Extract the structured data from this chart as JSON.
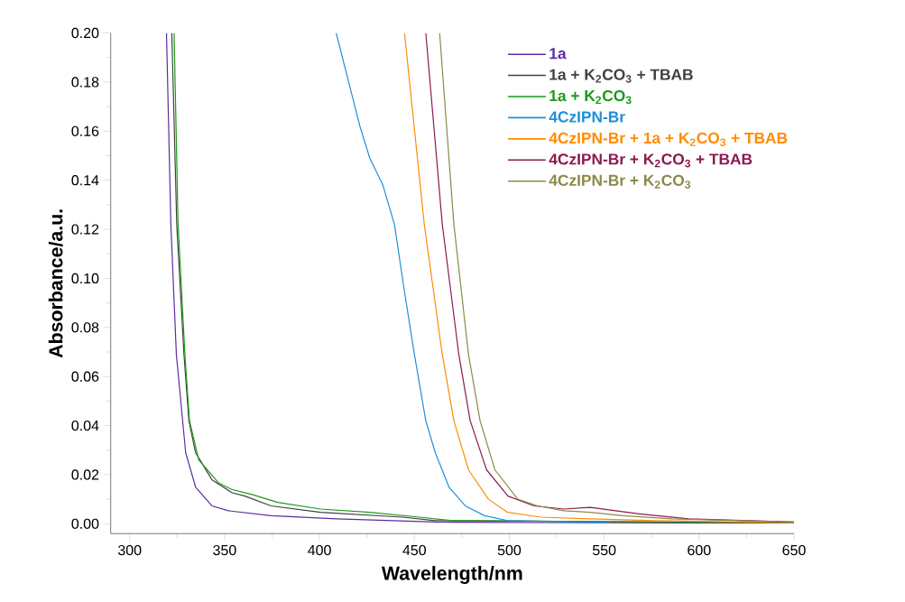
{
  "chart_data": {
    "type": "line",
    "xlabel": "Wavelength/nm",
    "ylabel": "Absorbance/a.u.",
    "xlim": [
      290,
      650
    ],
    "ylim": [
      -0.004,
      0.2
    ],
    "xticks": [
      300,
      350,
      400,
      450,
      500,
      550,
      600,
      650
    ],
    "yticks": [
      {
        "value": 0,
        "label": "0.00"
      },
      {
        "value": 0.02,
        "label": "0.02"
      },
      {
        "value": 0.04,
        "label": "0.04"
      },
      {
        "value": 0.06,
        "label": "0.06"
      },
      {
        "value": 0.08,
        "label": "0.08"
      },
      {
        "value": 0.1,
        "label": "0.10"
      },
      {
        "value": 0.12,
        "label": "0.12"
      },
      {
        "value": 0.14,
        "label": "0.14"
      },
      {
        "value": 0.16,
        "label": "0.16"
      },
      {
        "value": 0.18,
        "label": "0.18"
      },
      {
        "value": 0.2,
        "label": "0.20"
      }
    ],
    "legend": "top right",
    "series": [
      {
        "name": "1a",
        "color": "#5b2ca0",
        "x": [
          319.4,
          321.7,
          324.6,
          329.5,
          334.7,
          343.3,
          352,
          374.5,
          409,
          461,
          550,
          650
        ],
        "values": [
          0.2,
          0.122,
          0.069,
          0.029,
          0.015,
          0.0073,
          0.0053,
          0.0033,
          0.002,
          0.0007,
          0.0004,
          0.0003
        ]
      },
      {
        "name": "1a + K$_{2}$CO$_{3}$ + TBAB",
        "color": "#404040",
        "x": [
          322.2,
          324.8,
          328.6,
          331.2,
          334.7,
          343.3,
          353.7,
          360.7,
          374.5,
          400.5,
          443.8,
          461,
          550,
          650
        ],
        "values": [
          0.2,
          0.122,
          0.069,
          0.042,
          0.029,
          0.018,
          0.0127,
          0.0113,
          0.0073,
          0.0047,
          0.0027,
          0.0013,
          null,
          0.0004
        ]
      },
      {
        "name": "1a + K$_{2}$CO$_{3}$",
        "color": "#1a9a1a",
        "x": [
          323.4,
          325.5,
          329.1,
          331.5,
          336.4,
          346.8,
          353.7,
          364,
          378,
          400.5,
          426.5,
          452.5,
          470,
          550,
          650
        ],
        "values": [
          0.2,
          0.122,
          0.069,
          0.042,
          0.026,
          0.0167,
          0.014,
          0.012,
          0.0087,
          0.006,
          0.0047,
          0.0027,
          0.0013,
          null,
          0.0004
        ]
      },
      {
        "name": "4CzIPN-Br",
        "color": "#1f8fd6",
        "x": [
          408.8,
          421.3,
          426.5,
          433.4,
          439.5,
          444.7,
          450,
          456,
          461,
          468.2,
          476.8,
          487,
          499,
          550
        ],
        "values": [
          0.2,
          0.162,
          0.149,
          0.138,
          0.122,
          0.095,
          0.069,
          0.042,
          0.029,
          0.015,
          0.0073,
          0.0033,
          0.0013,
          0.0005
        ]
      },
      {
        "name": "4CzIPN-Br + 1a + K$_{2}$CO$_{3}$ + TBAB",
        "color": "#ff8c00",
        "x": [
          444.8,
          455.2,
          464.7,
          470.8,
          478.5,
          489,
          499,
          516.6,
          542.6,
          577,
          650
        ],
        "values": [
          0.2,
          0.122,
          0.069,
          0.042,
          0.022,
          0.01,
          0.0047,
          0.0027,
          0.002,
          0.0013,
          0.0004
        ]
      },
      {
        "name": "4CzIPN-Br + K$_{2}$CO$_{3}$ + TBAB",
        "color": "#8b1a4f",
        "x": [
          456,
          464.7,
          473.4,
          479.4,
          488,
          499.3,
          513,
          528.7,
          542.6,
          568.5,
          594.5,
          650
        ],
        "values": [
          0.2,
          0.122,
          0.069,
          0.042,
          0.022,
          0.0113,
          0.0073,
          0.006,
          0.0067,
          0.004,
          0.002,
          0.0007
        ]
      },
      {
        "name": "4CzIPN-Br + K$_{2}$CO$_{3}$",
        "color": "#8a8a4a",
        "x": [
          463.3,
          470.8,
          478.5,
          484.6,
          492.4,
          504.5,
          514.9,
          528.7,
          542.6,
          559.9,
          585.8,
          650
        ],
        "values": [
          0.2,
          0.122,
          0.069,
          0.042,
          0.022,
          0.01,
          0.0073,
          0.0053,
          0.0047,
          0.0033,
          0.002,
          0.0007
        ]
      }
    ]
  }
}
